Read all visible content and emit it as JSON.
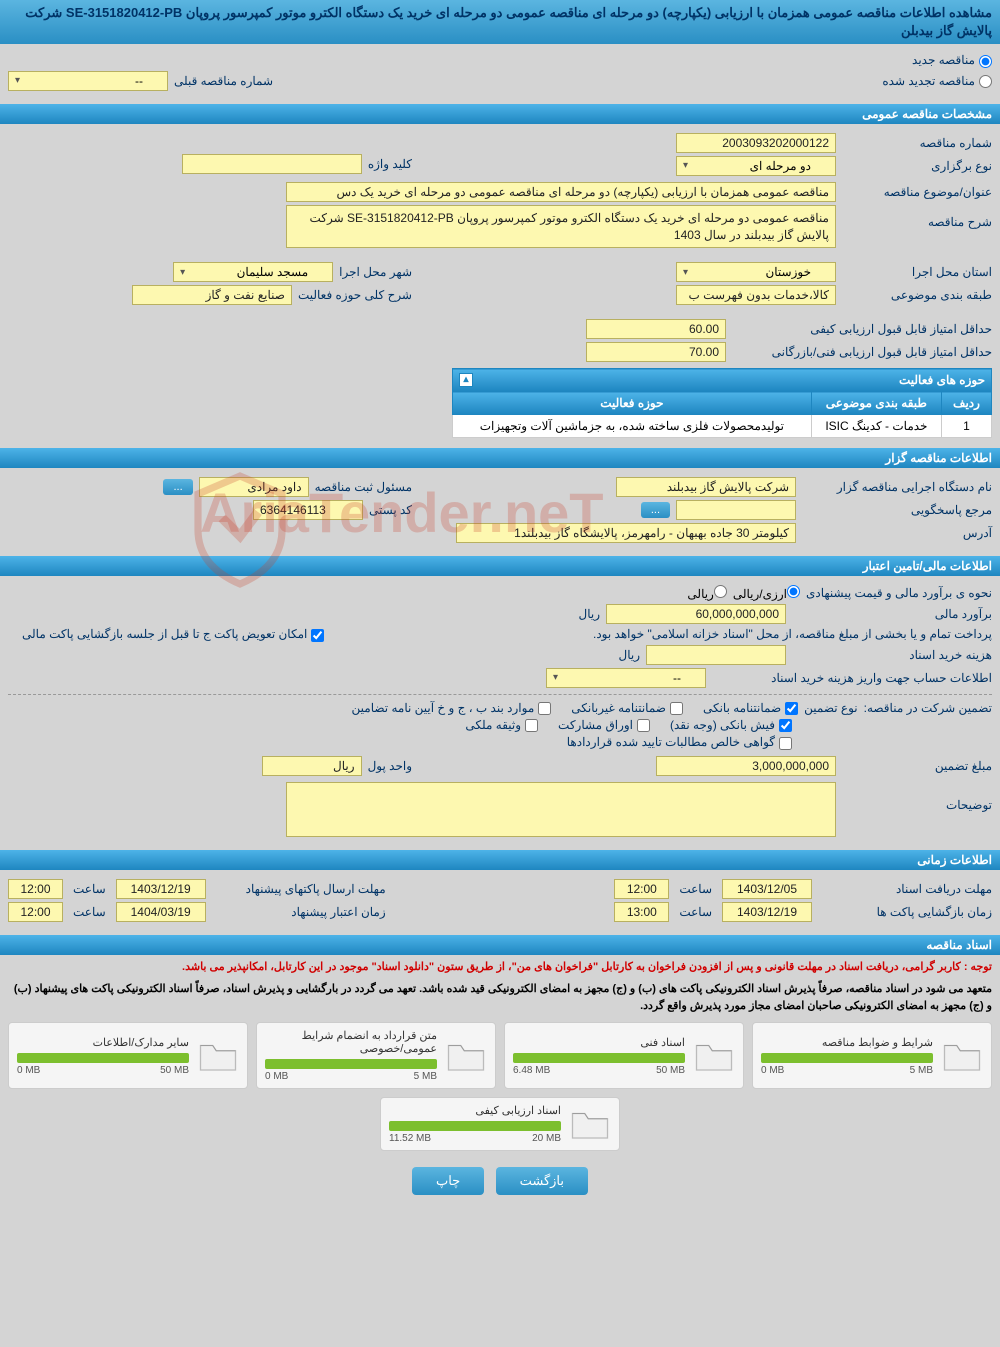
{
  "page_title": "مشاهده اطلاعات مناقصه عمومی همزمان با ارزیابی (یکپارچه) دو مرحله ای مناقصه عمومی دو مرحله ای خرید یک دستگاه الکترو موتور کمپرسور پروپان SE-3151820412-PB شرکت پالایش گاز بیدبلن",
  "top_radios": {
    "new_label": "مناقصه جدید",
    "renew_label": "مناقصه تجدید شده",
    "prev_label": "شماره مناقصه قبلی",
    "prev_value": "--"
  },
  "sections": {
    "general": "مشخصات مناقصه عمومی",
    "activity_table_title": "حوزه های فعالیت",
    "organizer": "اطلاعات مناقصه گزار",
    "finance": "اطلاعات مالی/تامین اعتبار",
    "time": "اطلاعات زمانی",
    "docs": "اسناد مناقصه"
  },
  "general": {
    "tender_no_label": "شماره مناقصه",
    "tender_no": "2003093202000122",
    "type_label": "نوع برگزاری",
    "type_value": "دو مرحله ای",
    "keyword_label": "کلید واژه",
    "keyword_value": "",
    "subject_label": "عنوان/موضوع مناقصه",
    "subject_value": "مناقصه عمومی همزمان با ارزیابی (یکپارچه) دو مرحله ای مناقصه عمومی دو مرحله ای خرید یک دس",
    "desc_label": "شرح مناقصه",
    "desc_value": "مناقصه عمومی دو مرحله ای خرید یک دستگاه الکترو موتور کمپرسور پروپان SE-3151820412-PB شرکت پالایش گاز بیدبلند در سال 1403",
    "province_label": "استان محل اجرا",
    "province_value": "خوزستان",
    "city_label": "شهر محل اجرا",
    "city_value": "مسجد سلیمان",
    "class_label": "طبقه بندی موضوعی",
    "class_value": "کالا،خدمات بدون فهرست ب",
    "scope_label": "شرح کلی حوزه فعالیت",
    "scope_value": "صنایع نفت و گاز",
    "min_quality_label": "حداقل امتیاز قابل قبول ارزیابی کیفی",
    "min_quality_value": "60.00",
    "min_tech_label": "حداقل امتیاز قابل قبول ارزیابی فنی/بازرگانی",
    "min_tech_value": "70.00"
  },
  "activity_table": {
    "col_row": "ردیف",
    "col_class": "طبقه بندی موضوعی",
    "col_scope": "حوزه فعالیت",
    "rows": [
      {
        "n": "1",
        "class": "خدمات - کدینگ ISIC",
        "scope": "تولیدمحصولات فلزی ساخته شده، به جزماشین آلات وتجهیزات"
      }
    ]
  },
  "organizer": {
    "agency_label": "نام دستگاه اجرایی مناقصه گزار",
    "agency_value": "شرکت پالایش گاز بیدبلند",
    "registrar_label": "مسئول ثبت مناقصه",
    "registrar_value": "داود مرادی",
    "responder_label": "مرجع پاسخگویی",
    "responder_value": "",
    "postal_label": "کد پستی",
    "postal_value": "6364146113",
    "address_label": "آدرس",
    "address_value": "کیلومتر 30 جاده بهبهان - رامهرمز، پالایشگاه گاز بیدبلند1",
    "more_btn": "..."
  },
  "finance": {
    "estimate_method_label": "نحوه ی برآورد مالی و قیمت پیشنهادی",
    "option_fx_rial": "ارزی/ریالی",
    "option_rial": "ریالی",
    "estimate_label": "برآورد مالی",
    "estimate_value": "60,000,000,000",
    "currency": "ریال",
    "payment_note": "پرداخت تمام و یا بخشی از مبلغ مناقصه، از محل \"اسناد خزانه اسلامی\" خواهد بود.",
    "replace_note": "امکان تعویض پاکت ج تا قبل از جلسه بازگشایی پاکت مالی",
    "doc_cost_label": "هزینه خرید اسناد",
    "doc_cost_value": "",
    "account_label": "اطلاعات حساب جهت واریز هزینه خرید اسناد",
    "account_value": "--",
    "guarantee_section_label": "تضمین شرکت در مناقصه:",
    "guarantee_type_label": "نوع تضمین",
    "g_bank": "ضمانتنامه بانکی",
    "g_nonbank": "ضمانتنامه غیربانکی",
    "g_bond": "موارد بند ب ، ج و خ آیین نامه تضامین",
    "g_cash": "فیش بانکی (وجه نقد)",
    "g_securities": "اوراق مشارکت",
    "g_property": "وثیقه ملکی",
    "g_receivables": "گواهی خالص مطالبات تایید شده قراردادها",
    "guarantee_amount_label": "مبلغ تضمین",
    "guarantee_amount_value": "3,000,000,000",
    "guarantee_unit_label": "واحد پول",
    "guarantee_unit_value": "ریال",
    "notes_label": "توضیحات",
    "notes_value": ""
  },
  "time": {
    "receive_deadline_label": "مهلت دریافت اسناد",
    "receive_date": "1403/12/05",
    "receive_time": "12:00",
    "send_deadline_label": "مهلت ارسال پاکتهای پیشنهاد",
    "send_date": "1403/12/19",
    "send_time": "12:00",
    "open_label": "زمان بازگشایی پاکت ها",
    "open_date": "1403/12/19",
    "open_time": "13:00",
    "validity_label": "زمان اعتبار پیشنهاد",
    "validity_date": "1404/03/19",
    "validity_time": "12:00",
    "hour_label": "ساعت"
  },
  "docs_notice": {
    "line1": "توجه : کاربر گرامی، دریافت اسناد در مهلت قانونی و پس از افزودن فراخوان به کارتابل \"فراخوان های من\"، از طریق ستون \"دانلود اسناد\" موجود در این کارتابل، امکانپذیر می باشد.",
    "line2": "متعهد می شود در اسناد مناقصه، صرفاً پذیرش اسناد الکترونیکی پاکت های (ب) و (ج) مجهز به امضای الکترونیکی قید شده باشد. تعهد می گردد در بارگشایی و پذیرش اسناد، صرفاً اسناد الکترونیکی پاکت های پیشنهاد (ب) و (ج) مجهز به امضای الکترونیکی صاحبان امضای مجاز مورد پذیرش واقع گردد."
  },
  "doc_cards": [
    {
      "title": "شرایط و ضوابط مناقصه",
      "used": "0 MB",
      "total": "5 MB",
      "pct": 100
    },
    {
      "title": "اسناد فنی",
      "used": "6.48 MB",
      "total": "50 MB",
      "pct": 100
    },
    {
      "title": "متن قرارداد به انضمام شرایط عمومی/خصوصی",
      "used": "0 MB",
      "total": "5 MB",
      "pct": 100
    },
    {
      "title": "سایر مدارک/اطلاعات",
      "used": "0 MB",
      "total": "50 MB",
      "pct": 100
    },
    {
      "title": "اسناد ارزیابی کیفی",
      "used": "11.52 MB",
      "total": "20 MB",
      "pct": 100
    }
  ],
  "footer": {
    "back": "بازگشت",
    "print": "چاپ"
  },
  "watermark_text": "AriaTender.neT"
}
